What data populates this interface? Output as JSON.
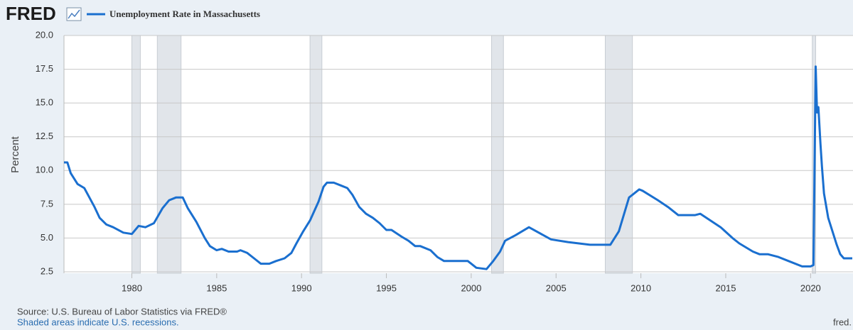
{
  "logo": "FRED",
  "chart_data": {
    "type": "line",
    "y_label": "Percent",
    "source": "Source: U.S. Bureau of Labor Statistics via FRED®",
    "note": "Shaded areas indicate U.S. recessions.",
    "site": "fred.",
    "xlim": [
      1976,
      2022.5
    ],
    "xticks": [
      1980,
      1985,
      1990,
      1995,
      2000,
      2005,
      2010,
      2015,
      2020
    ],
    "ylim": [
      2.5,
      20
    ],
    "yticks": [
      2.5,
      {
        "value": 5,
        "label": "5.0"
      },
      7.5,
      {
        "value": 10,
        "label": "10.0"
      },
      12.5,
      {
        "value": 15,
        "label": "15.0"
      },
      17.5,
      {
        "value": 20,
        "label": "20.0"
      }
    ],
    "grid": true,
    "recessions": [
      [
        1980.0,
        1980.5
      ],
      [
        1981.5,
        1982.9
      ],
      [
        1990.5,
        1991.2
      ],
      [
        2001.2,
        2001.9
      ],
      [
        2007.9,
        2009.5
      ],
      [
        2020.1,
        2020.3
      ]
    ],
    "series": [
      {
        "name": "Unemployment Rate in Massachusetts",
        "color": "#1a6fcf",
        "x": [
          1976.0,
          1976.2,
          1976.4,
          1976.8,
          1977.2,
          1977.5,
          1977.8,
          1978.1,
          1978.5,
          1978.9,
          1979.5,
          1980.0,
          1980.4,
          1980.8,
          1981.3,
          1981.8,
          1982.2,
          1982.6,
          1983.0,
          1983.3,
          1983.8,
          1984.3,
          1984.6,
          1985.0,
          1985.3,
          1985.7,
          1986.2,
          1986.4,
          1986.8,
          1987.2,
          1987.6,
          1988.1,
          1988.5,
          1989.0,
          1989.4,
          1989.7,
          1990.1,
          1990.5,
          1991.0,
          1991.3,
          1991.5,
          1991.9,
          1992.3,
          1992.7,
          1993.0,
          1993.4,
          1993.8,
          1994.2,
          1994.6,
          1995.0,
          1995.3,
          1995.9,
          1996.3,
          1996.7,
          1997.0,
          1997.6,
          1998.0,
          1998.4,
          1999.0,
          1999.8,
          2000.0,
          2000.3,
          2000.9,
          2001.3,
          2001.7,
          2002.0,
          2002.6,
          2003.4,
          2004.7,
          2005.7,
          2007.0,
          2008.2,
          2008.7,
          2009.3,
          2009.9,
          2010.1,
          2011.0,
          2011.6,
          2012.2,
          2013.2,
          2013.5,
          2014.1,
          2014.7,
          2015.4,
          2015.8,
          2016.6,
          2017.0,
          2017.5,
          2018.1,
          2018.7,
          2019.5,
          2020.0,
          2020.17,
          2020.3,
          2020.38,
          2020.46,
          2020.58,
          2020.67,
          2020.79,
          2021.04,
          2021.29,
          2021.54,
          2021.75,
          2021.96,
          2022.46
        ],
        "values": [
          10.6,
          10.6,
          9.8,
          9.0,
          8.7,
          8.0,
          7.3,
          6.5,
          6.0,
          5.8,
          5.4,
          5.3,
          5.9,
          5.8,
          6.1,
          7.2,
          7.8,
          8.0,
          8.0,
          7.2,
          6.2,
          5.0,
          4.4,
          4.1,
          4.2,
          4.0,
          4.0,
          4.1,
          3.9,
          3.5,
          3.1,
          3.1,
          3.3,
          3.5,
          3.9,
          4.6,
          5.5,
          6.3,
          7.7,
          8.8,
          9.1,
          9.1,
          8.9,
          8.7,
          8.2,
          7.3,
          6.8,
          6.5,
          6.1,
          5.6,
          5.6,
          5.1,
          4.8,
          4.4,
          4.4,
          4.1,
          3.6,
          3.3,
          3.3,
          3.3,
          3.1,
          2.8,
          2.7,
          3.3,
          4.0,
          4.8,
          5.2,
          5.8,
          4.9,
          4.7,
          4.5,
          4.5,
          5.5,
          8.0,
          8.6,
          8.5,
          7.8,
          7.3,
          6.7,
          6.7,
          6.8,
          6.3,
          5.8,
          5.0,
          4.6,
          4.0,
          3.8,
          3.8,
          3.6,
          3.3,
          2.9,
          2.9,
          3.0,
          17.7,
          14.3,
          14.7,
          12.0,
          10.3,
          8.3,
          6.5,
          5.5,
          4.5,
          3.8,
          3.5,
          3.5
        ]
      }
    ]
  }
}
